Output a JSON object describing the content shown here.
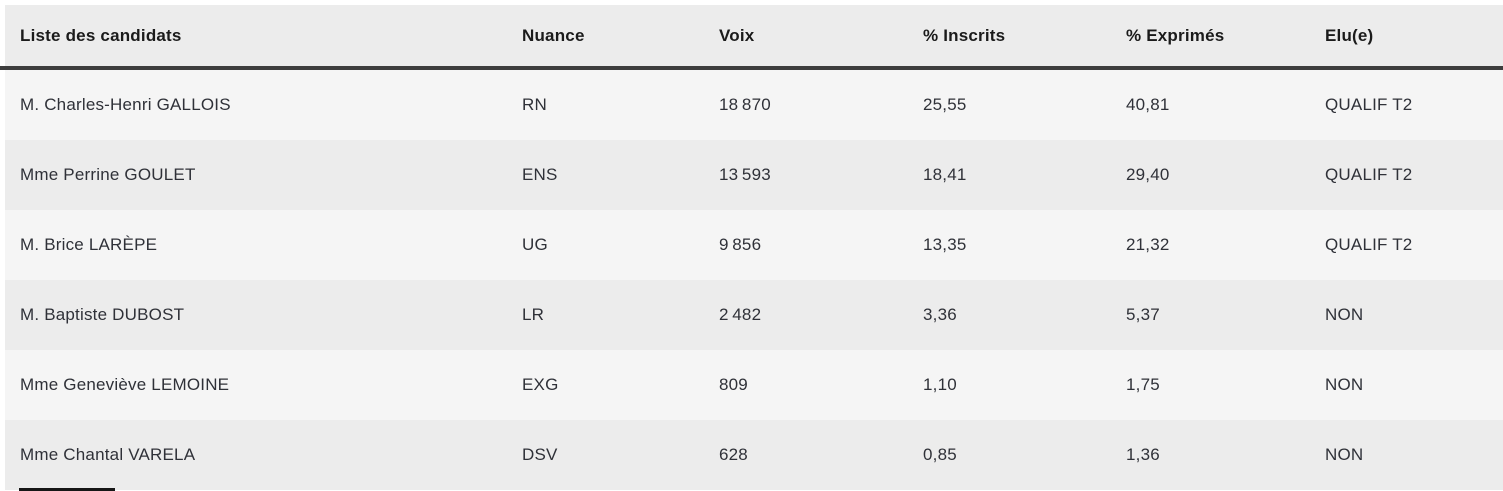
{
  "page": {
    "colors": {
      "page_bg": "#ffffff",
      "header_bg": "#ececec",
      "row_odd_bg": "#f5f5f5",
      "row_even_bg": "#ececec",
      "divider": "#3d3d3d",
      "header_text": "#1b1b1b",
      "body_text": "#2f3138",
      "cutoff_bar": "#161616"
    }
  },
  "table": {
    "headers": [
      "Liste des candidats",
      "Nuance",
      "Voix",
      "% Inscrits",
      "% Exprimés",
      "Elu(e)"
    ],
    "rows": [
      {
        "candidate": "M. Charles-Henri GALLOIS",
        "nuance": "RN",
        "voix": "18 870",
        "pct_inscrits": "25,55",
        "pct_exprimes": "40,81",
        "elu": "QUALIF T2"
      },
      {
        "candidate": "Mme Perrine GOULET",
        "nuance": "ENS",
        "voix": "13 593",
        "pct_inscrits": "18,41",
        "pct_exprimes": "29,40",
        "elu": "QUALIF T2"
      },
      {
        "candidate": "M. Brice LARÈPE",
        "nuance": "UG",
        "voix": "9 856",
        "pct_inscrits": "13,35",
        "pct_exprimes": "21,32",
        "elu": "QUALIF T2"
      },
      {
        "candidate": "M. Baptiste DUBOST",
        "nuance": "LR",
        "voix": "2 482",
        "pct_inscrits": "3,36",
        "pct_exprimes": "5,37",
        "elu": "NON"
      },
      {
        "candidate": "Mme Geneviève LEMOINE",
        "nuance": "EXG",
        "voix": "809",
        "pct_inscrits": "1,10",
        "pct_exprimes": "1,75",
        "elu": "NON"
      },
      {
        "candidate": "Mme Chantal VARELA",
        "nuance": "DSV",
        "voix": "628",
        "pct_inscrits": "0,85",
        "pct_exprimes": "1,36",
        "elu": "NON"
      }
    ]
  }
}
